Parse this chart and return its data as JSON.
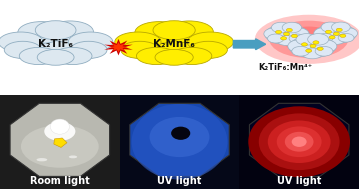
{
  "bg_color": "#ffffff",
  "cloud1_color": "#dde8f0",
  "cloud1_border": "#90adc0",
  "cloud1_label": "K₂TiF₆",
  "cloud2_color": "#ffee00",
  "cloud2_border": "#b8a800",
  "cloud2_label": "K₂MnF₆",
  "product_label": "K₂TiF₆:Mn⁴⁺",
  "arrow_color": "#4a9ec0",
  "star_color": "#cc0000",
  "panel1_label": "Room light",
  "panel2_label": "UV light",
  "panel3_label": "UV light",
  "panel1_bg": "#1a1a1a",
  "panel2_bg": "#0a0a1a",
  "panel3_bg": "#050510",
  "label_color": "#ffffff",
  "label_fontsize": 7.0,
  "cloud_fontsize": 7.5,
  "product_fontsize": 6.0
}
